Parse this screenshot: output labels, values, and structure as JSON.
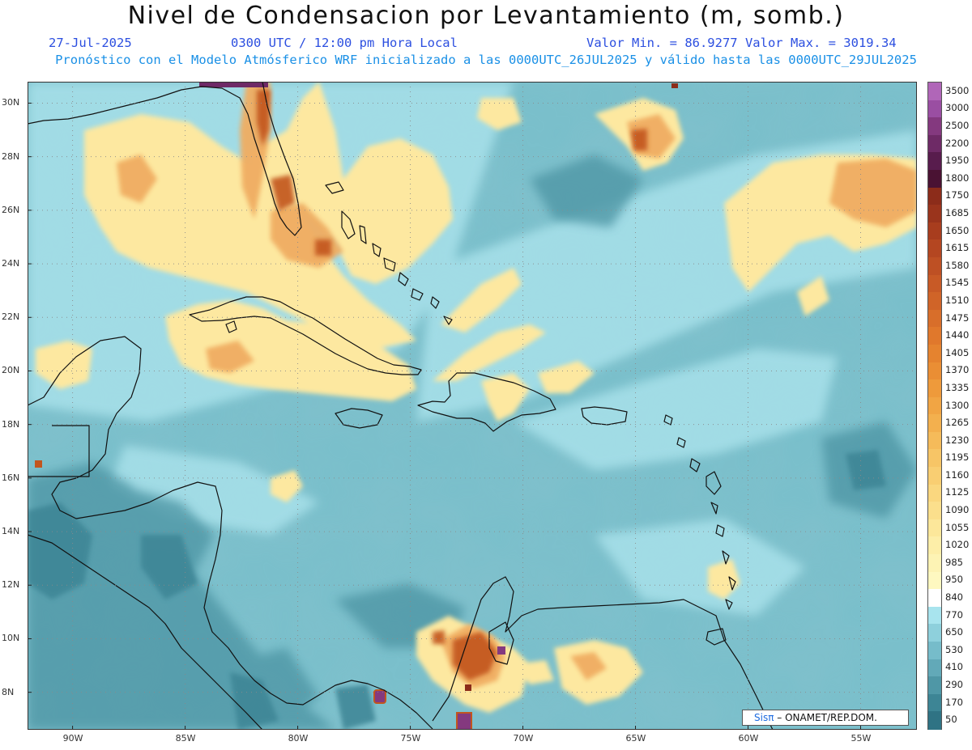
{
  "header": {
    "title": "Nivel de Condensacion por Levantamiento (m, somb.)",
    "date": "27-Jul-2025",
    "time": "0300 UTC / 12:00 pm Hora Local",
    "minmax": "Valor Min. = 86.9277  Valor Max. = 3019.34",
    "run": "Pronóstico con el Modelo Atmósferico WRF inicializado a las 0000UTC_26JUL2025 y válido hasta las  0000UTC_29JUL2025"
  },
  "map": {
    "lon_range": [
      -92,
      -52.5
    ],
    "lat_range": [
      6.6,
      30.8
    ],
    "lon_ticks": [
      "90W",
      "85W",
      "80W",
      "75W",
      "70W",
      "65W",
      "60W",
      "55W"
    ],
    "lat_ticks": [
      "30N",
      "28N",
      "26N",
      "24N",
      "22N",
      "20N",
      "18N",
      "16N",
      "14N",
      "12N",
      "10N",
      "8N"
    ]
  },
  "colorbar": {
    "levels": [
      "3500",
      "3000",
      "2500",
      "2200",
      "1950",
      "1800",
      "1750",
      "1685",
      "1650",
      "1615",
      "1580",
      "1545",
      "1510",
      "1475",
      "1440",
      "1405",
      "1370",
      "1335",
      "1300",
      "1265",
      "1230",
      "1195",
      "1160",
      "1125",
      "1090",
      "1055",
      "1020",
      "985",
      "950",
      "840",
      "770",
      "650",
      "530",
      "410",
      "290",
      "170",
      "50"
    ],
    "colors": [
      "#b066b8",
      "#9a4ea2",
      "#84397f",
      "#6e2a66",
      "#581c4d",
      "#4a1233",
      "#8c2c1a",
      "#9a341c",
      "#a83d1e",
      "#b44621",
      "#be5024",
      "#c85a26",
      "#d06428",
      "#d86e2a",
      "#e0782c",
      "#e5832f",
      "#ea8e34",
      "#ee9a3b",
      "#f1a544",
      "#f3b04e",
      "#f5bb5a",
      "#f7c566",
      "#f9ce72",
      "#fad77f",
      "#fbdf8c",
      "#fce79a",
      "#fdeea8",
      "#fdf3b4",
      "#fef8c0",
      "#ffffff",
      "#a8e4ee",
      "#8ed0dc",
      "#76bcca",
      "#62a9b8",
      "#4f97a6",
      "#3d8595",
      "#2f7384"
    ]
  },
  "credit": {
    "logo": "Sisπ",
    "text": "– ONAMET/REP.DOM."
  }
}
